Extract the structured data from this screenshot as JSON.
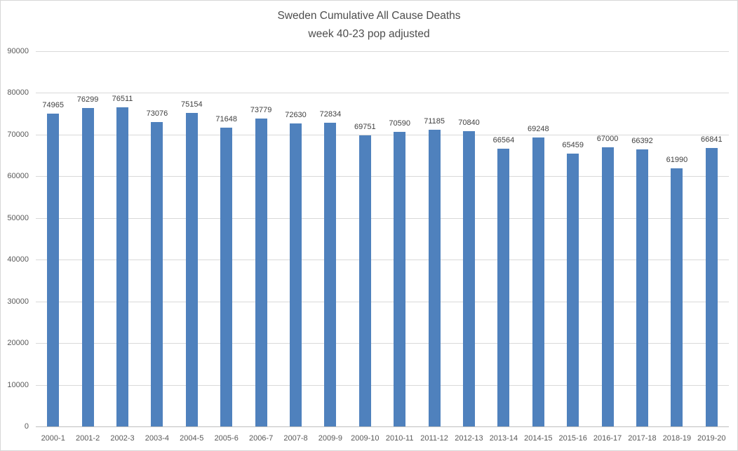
{
  "chart_data": {
    "type": "bar",
    "title": "Sweden Cumulative All Cause Deaths",
    "subtitle": "week 40-23 pop adjusted",
    "categories": [
      "2000-1",
      "2001-2",
      "2002-3",
      "2003-4",
      "2004-5",
      "2005-6",
      "2006-7",
      "2007-8",
      "2009-9",
      "2009-10",
      "2010-11",
      "2011-12",
      "2012-13",
      "2013-14",
      "2014-15",
      "2015-16",
      "2016-17",
      "2017-18",
      "2018-19",
      "2019-20"
    ],
    "values": [
      74965,
      76299,
      76511,
      73076,
      75154,
      71648,
      73779,
      72630,
      72834,
      69751,
      70590,
      71185,
      70840,
      66564,
      69248,
      65459,
      67000,
      66392,
      61990,
      66841
    ],
    "xlabel": "",
    "ylabel": "",
    "ylim": [
      0,
      90000
    ],
    "ytick_step": 10000,
    "yticks": [
      0,
      10000,
      20000,
      30000,
      40000,
      50000,
      60000,
      70000,
      80000,
      90000
    ],
    "grid": true,
    "legend": "none",
    "data_labels": true,
    "colors": {
      "bar": "#4f81bd",
      "gridline": "#d9d9d9",
      "axis_line": "#bfbfbf",
      "title_text": "#4d4d4d",
      "axis_text": "#595959",
      "data_label_text": "#404040",
      "frame_border": "#d7d7d7",
      "background": "#ffffff"
    }
  }
}
